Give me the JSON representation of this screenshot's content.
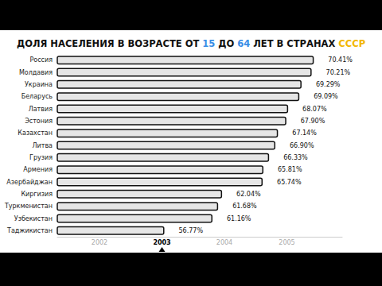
{
  "chart_data": {
    "type": "bar",
    "orientation": "horizontal",
    "title": "ДОЛЯ НАСЕЛЕНИЯ В ВОЗРАСТЕ ОТ 15 ДО 64 ЛЕТ В СТРАНАХ СССР",
    "categories": [
      "Россия",
      "Молдавия",
      "Украина",
      "Беларусь",
      "Латвия",
      "Эстония",
      "Казахстан",
      "Литва",
      "Грузия",
      "Армения",
      "Азербайджан",
      "Киргизия",
      "Туркменистан",
      "Узбекистан",
      "Таджикистан"
    ],
    "values": [
      70.41,
      70.21,
      69.29,
      69.09,
      68.07,
      67.9,
      67.14,
      66.9,
      66.33,
      65.81,
      65.74,
      62.04,
      61.68,
      61.16,
      56.77
    ],
    "value_labels": [
      "70.41%",
      "70.21%",
      "69.29%",
      "69.09%",
      "68.07%",
      "67.90%",
      "67.14%",
      "66.90%",
      "66.33%",
      "65.81%",
      "65.74%",
      "62.04%",
      "61.68%",
      "61.16%",
      "56.77%"
    ],
    "color": "#e6e6e6",
    "xlim": [
      47,
      73
    ],
    "tick_labels": "y",
    "data_labels": true,
    "grid": false,
    "timeline": [
      "2002",
      "2003",
      "2004",
      "2005"
    ],
    "timeline_current": "2003"
  }
}
